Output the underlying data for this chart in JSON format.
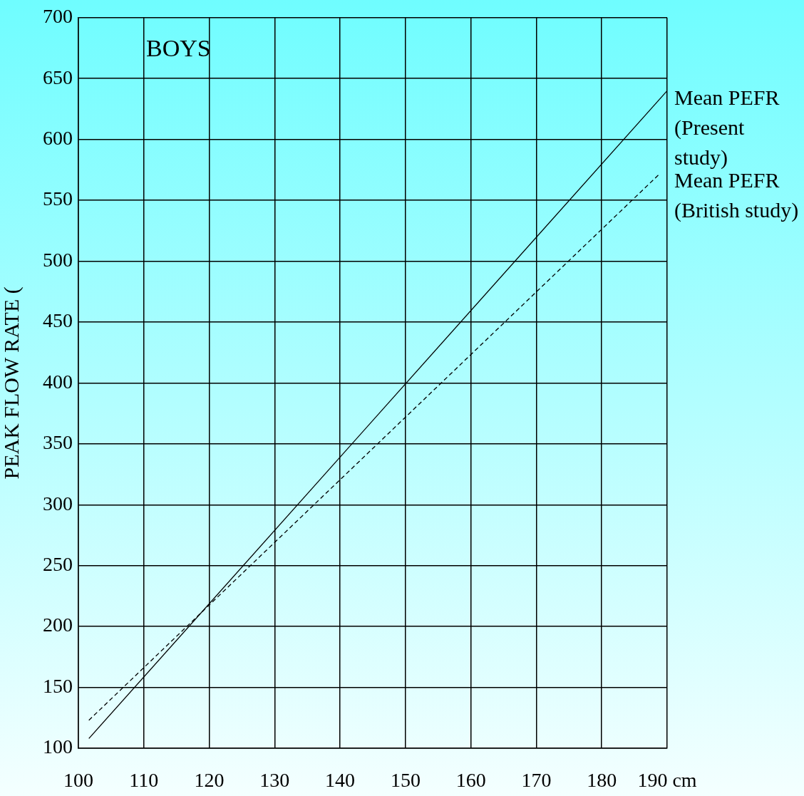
{
  "chart_data": {
    "type": "line",
    "ylabel": "PEAK FLOW RATE (",
    "annotations": [
      "BOYS"
    ],
    "xlim": [
      100,
      190
    ],
    "xticks": [
      100,
      110,
      120,
      130,
      140,
      150,
      160,
      170,
      180,
      {
        "value": 190,
        "label": "190 cm"
      }
    ],
    "ylim": [
      100,
      700
    ],
    "yticks": [
      100,
      150,
      200,
      250,
      300,
      350,
      400,
      450,
      500,
      550,
      600,
      650,
      700
    ],
    "grid": true,
    "legend": false,
    "marker": "none",
    "series": [
      {
        "name": "Mean PEFR (Present study)",
        "color": "#000000",
        "line_style": "solid",
        "x": [
          101.6,
          190
        ],
        "values": [
          108,
          640
        ]
      },
      {
        "name": "Mean PEFR (British study)",
        "color": "#000000",
        "line_style": "dashed",
        "x": [
          101.6,
          188.9
        ],
        "values": [
          123,
          572
        ]
      }
    ]
  }
}
